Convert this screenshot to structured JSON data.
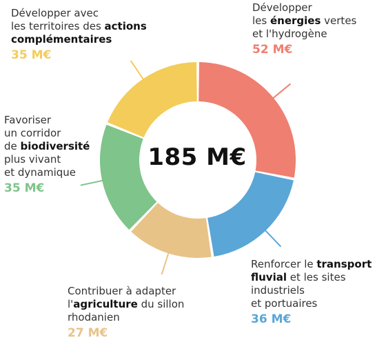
{
  "chart_data": {
    "type": "donut",
    "total_label": "185 M€",
    "segments": [
      {
        "lines": [
          [
            {
              "t": "Développer avec"
            }
          ],
          [
            {
              "t": "les territoires des "
            },
            {
              "t": "actions",
              "b": true
            }
          ],
          [
            {
              "t": "complémentaires",
              "b": true
            }
          ]
        ],
        "value": 35,
        "value_label": "35 M€",
        "color": "#f3cc5a"
      },
      {
        "lines": [
          [
            {
              "t": "Développer"
            }
          ],
          [
            {
              "t": "les "
            },
            {
              "t": "énergies",
              "b": true
            },
            {
              "t": " vertes"
            }
          ],
          [
            {
              "t": "et l'hydrogène"
            }
          ]
        ],
        "value": 52,
        "value_label": "52 M€",
        "color": "#ef7f70"
      },
      {
        "lines": [
          [
            {
              "t": "Favoriser"
            }
          ],
          [
            {
              "t": "un corridor"
            }
          ],
          [
            {
              "t": "de "
            },
            {
              "t": "biodiversité",
              "b": true
            }
          ],
          [
            {
              "t": "plus vivant"
            }
          ],
          [
            {
              "t": "et dynamique"
            }
          ]
        ],
        "value": 35,
        "value_label": "35 M€",
        "color": "#7fc48a"
      },
      {
        "lines": [
          [
            {
              "t": "Renforcer le "
            },
            {
              "t": "transport",
              "b": true
            }
          ],
          [
            {
              "t": "fluvial",
              "b": true
            },
            {
              "t": " et les sites"
            }
          ],
          [
            {
              "t": "industriels"
            }
          ],
          [
            {
              "t": "et portuaires"
            }
          ]
        ],
        "value": 36,
        "value_label": "36 M€",
        "color": "#5aa6d7"
      },
      {
        "lines": [
          [
            {
              "t": "Contribuer à adapter"
            }
          ],
          [
            {
              "t": "l'"
            },
            {
              "t": "agriculture",
              "b": true
            },
            {
              "t": " du sillon"
            }
          ],
          [
            {
              "t": "rhodanien"
            }
          ]
        ],
        "value": 27,
        "value_label": "27 M€",
        "color": "#e8c387"
      }
    ],
    "order_clockwise_from_top": [
      1,
      3,
      4,
      2,
      0
    ]
  }
}
